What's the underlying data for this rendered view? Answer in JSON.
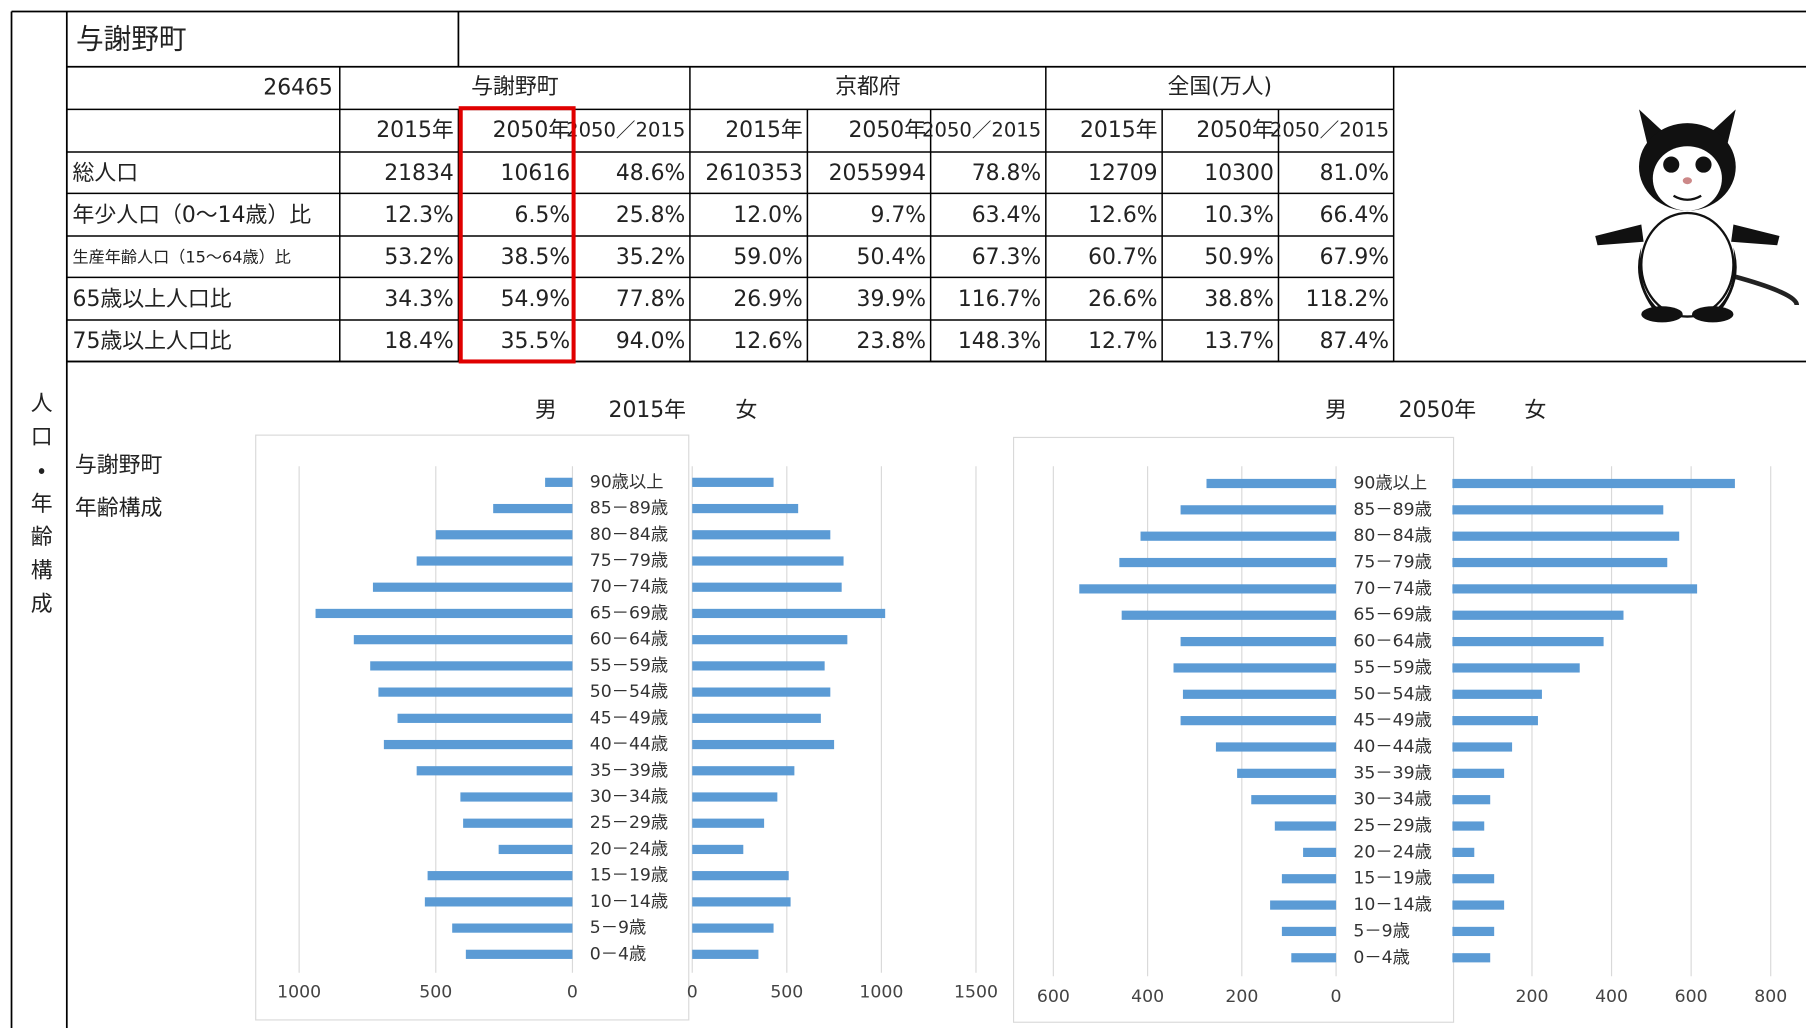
{
  "header": {
    "title": "与謝野町"
  },
  "side_label": "人口・年齢構成",
  "table": {
    "code": "26465",
    "groups": [
      "与謝野町",
      "京都府",
      "全国(万人)"
    ],
    "columns": [
      "2015年",
      "2050年",
      "2050／2015",
      "2015年",
      "2050年",
      "2050／2015",
      "2015年",
      "2050年",
      "2050／2015"
    ],
    "rows": [
      [
        "総人口",
        "21834",
        "10616",
        "48.6%",
        "2610353",
        "2055994",
        "78.8%",
        "12709",
        "10300",
        "81.0%"
      ],
      [
        "年少人口（0～14歳）比",
        "12.3%",
        "6.5%",
        "25.8%",
        "12.0%",
        "9.7%",
        "63.4%",
        "12.6%",
        "10.3%",
        "66.4%"
      ],
      [
        "生産年齢人口（15～64歳）比",
        "53.2%",
        "38.5%",
        "35.2%",
        "59.0%",
        "50.4%",
        "67.3%",
        "60.7%",
        "50.9%",
        "67.9%"
      ],
      [
        "65歳以上人口比",
        "34.3%",
        "54.9%",
        "77.8%",
        "26.9%",
        "39.9%",
        "116.7%",
        "26.6%",
        "38.8%",
        "118.2%"
      ],
      [
        "75歳以上人口比",
        "18.4%",
        "35.5%",
        "94.0%",
        "12.6%",
        "23.8%",
        "148.3%",
        "12.7%",
        "13.7%",
        "87.4%"
      ]
    ]
  },
  "chart_label": [
    "与謝野町",
    "年齢構成"
  ],
  "chart_data": [
    {
      "type": "pyramid",
      "title": "2015年",
      "categories": [
        "90歳以上",
        "85－89歳",
        "80－84歳",
        "75－79歳",
        "70－74歳",
        "65－69歳",
        "60－64歳",
        "55－59歳",
        "50－54歳",
        "45－49歳",
        "40－44歳",
        "35－39歳",
        "30－34歳",
        "25－29歳",
        "20－24歳",
        "15－19歳",
        "10－14歳",
        "5－9歳",
        "0－4歳"
      ],
      "grid": true,
      "series": [
        {
          "name": "男",
          "color": "#5b9bd5",
          "xlim": [
            0,
            1100
          ],
          "xticks": [
            1000,
            500,
            0
          ],
          "values": [
            100,
            290,
            500,
            570,
            730,
            940,
            800,
            740,
            710,
            640,
            690,
            570,
            410,
            400,
            270,
            530,
            540,
            440,
            390
          ]
        },
        {
          "name": "女",
          "color": "#5b9bd5",
          "xlim": [
            0,
            1650
          ],
          "xticks": [
            0,
            500,
            1000,
            1500
          ],
          "values": [
            430,
            560,
            730,
            800,
            790,
            1020,
            820,
            700,
            730,
            680,
            750,
            540,
            450,
            380,
            270,
            510,
            520,
            430,
            350
          ]
        }
      ]
    },
    {
      "type": "pyramid",
      "title": "2050年",
      "categories": [
        "90歳以上",
        "85－89歳",
        "80－84歳",
        "75－79歳",
        "70－74歳",
        "65－69歳",
        "60－64歳",
        "55－59歳",
        "50－54歳",
        "45－49歳",
        "40－44歳",
        "35－39歳",
        "30－34歳",
        "25－29歳",
        "20－24歳",
        "15－19歳",
        "10－14歳",
        "5－9歳",
        "0－4歳"
      ],
      "grid": true,
      "series": [
        {
          "name": "男",
          "color": "#5b9bd5",
          "xlim": [
            0,
            660
          ],
          "xticks": [
            600,
            400,
            200,
            0
          ],
          "values": [
            275,
            330,
            415,
            460,
            545,
            455,
            330,
            345,
            325,
            330,
            255,
            210,
            180,
            130,
            70,
            115,
            140,
            115,
            95
          ]
        },
        {
          "name": "女",
          "color": "#5b9bd5",
          "xlim": [
            0,
            880
          ],
          "xticks": [
            200,
            400,
            600,
            800
          ],
          "values": [
            710,
            530,
            570,
            540,
            615,
            430,
            380,
            320,
            225,
            215,
            150,
            130,
            95,
            80,
            55,
            105,
            130,
            105,
            95
          ]
        }
      ]
    }
  ]
}
